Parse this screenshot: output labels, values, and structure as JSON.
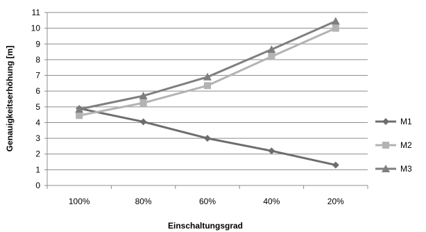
{
  "chart_data": {
    "type": "line",
    "title": "",
    "xlabel": "Einschaltungsgrad",
    "ylabel": "Genauigkeitserhöhung [m]",
    "categories": [
      "100%",
      "80%",
      "60%",
      "40%",
      "20%"
    ],
    "ylim": [
      0,
      11
    ],
    "yticks": [
      0,
      1,
      2,
      3,
      4,
      5,
      6,
      7,
      8,
      9,
      10,
      11
    ],
    "grid": "horizontal",
    "legend_position": "right",
    "series": [
      {
        "name": "M1",
        "values": [
          4.9,
          4.05,
          3.0,
          2.2,
          1.3
        ],
        "color": "#6d6d6d",
        "marker": "diamond"
      },
      {
        "name": "M2",
        "values": [
          4.45,
          5.25,
          6.35,
          8.2,
          10.0
        ],
        "color": "#b3b3b3",
        "marker": "square"
      },
      {
        "name": "M3",
        "values": [
          4.85,
          5.7,
          6.9,
          8.65,
          10.45
        ],
        "color": "#7f7f7f",
        "marker": "triangle"
      }
    ]
  }
}
